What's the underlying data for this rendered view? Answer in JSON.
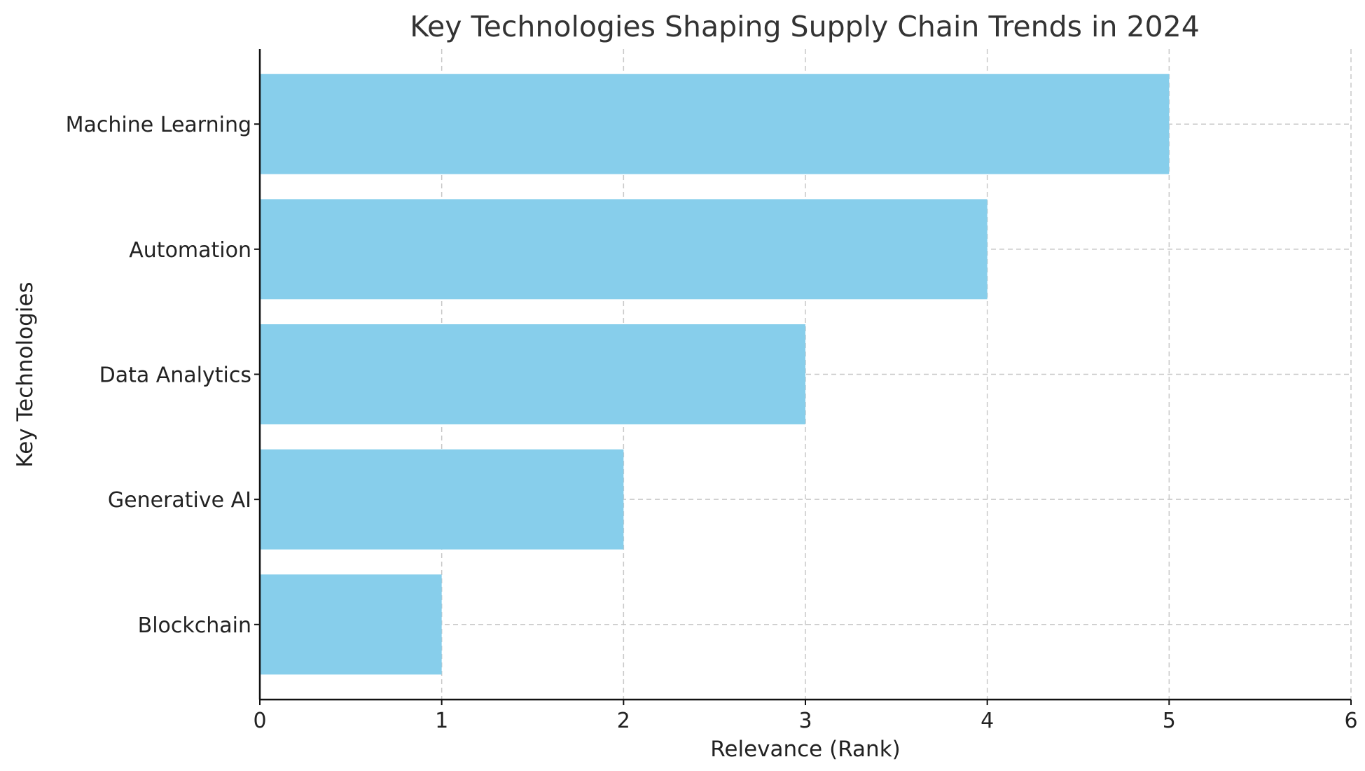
{
  "chart_data": {
    "type": "bar",
    "orientation": "horizontal",
    "title": "Key Technologies Shaping Supply Chain Trends in 2024",
    "xlabel": "Relevance (Rank)",
    "ylabel": "Key Technologies",
    "categories": [
      "Blockchain",
      "Generative AI",
      "Data Analytics",
      "Automation",
      "Machine Learning"
    ],
    "values": [
      1,
      2,
      3,
      4,
      5
    ],
    "xlim": [
      0,
      6
    ],
    "xticks": [
      0,
      1,
      2,
      3,
      4,
      5,
      6
    ],
    "grid": true,
    "bar_color": "#87ceeb"
  }
}
